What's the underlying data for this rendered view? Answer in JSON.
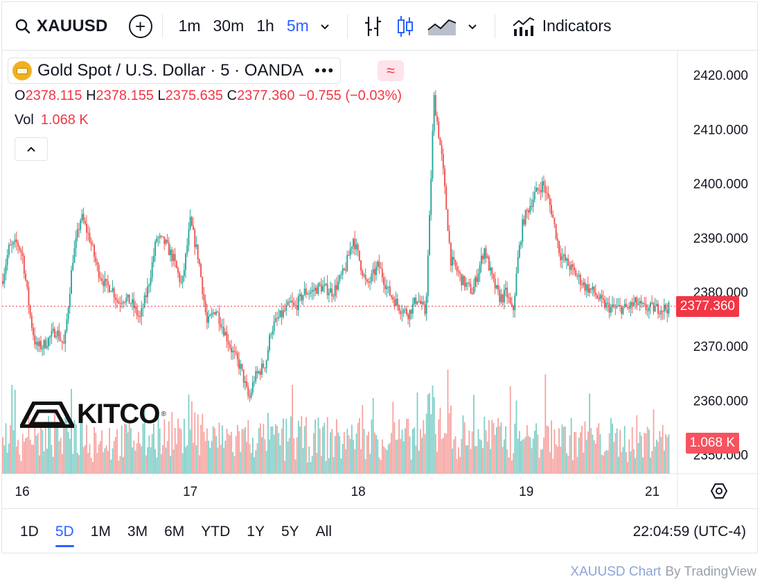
{
  "toolbar": {
    "symbol": "XAUUSD",
    "intervals": [
      "1m",
      "30m",
      "1h",
      "5m"
    ],
    "active_interval": "5m",
    "indicators_label": "Indicators"
  },
  "legend": {
    "title": "Gold Spot / U.S. Dollar · 5 · OANDA",
    "more": "•••",
    "wave": "≈",
    "open_key": "O",
    "open": "2378.115",
    "high_key": "H",
    "high": "2378.155",
    "low_key": "L",
    "low": "2375.635",
    "close_key": "C",
    "close": "2377.360",
    "change": "−0.755 (−0.03%)",
    "vol_key": "Vol",
    "vol_value": "1.068 K"
  },
  "watermark": {
    "text": "KITCO",
    "reg": "®"
  },
  "price_label": "2377.360",
  "volume_label": "1.068 K",
  "colors": {
    "up": "#26a69a",
    "down": "#ef5350",
    "up_vol": "#7fcfc7",
    "down_vol": "#f6a3a0",
    "accent": "#2962ff",
    "price_line": "#f23645"
  },
  "bottom": {
    "ranges": [
      "1D",
      "5D",
      "1M",
      "3M",
      "6M",
      "YTD",
      "1Y",
      "5Y",
      "All"
    ],
    "active_range": "5D",
    "clock": "22:04:59 (UTC-4)"
  },
  "attribution": {
    "link": "XAUUSD Chart",
    "by": "By TradingView"
  },
  "chart_data": {
    "type": "candlestick",
    "title": "Gold Spot / U.S. Dollar · 5 · OANDA",
    "y_ticks": [
      2420,
      2410,
      2400,
      2390,
      2380,
      2370,
      2360,
      2350
    ],
    "y_tick_labels": [
      "2420.000",
      "2410.000",
      "2400.000",
      "2390.000",
      "2380.000",
      "2370.000",
      "2360.000",
      "2350.000"
    ],
    "ylim": [
      2346.5,
      2424.5
    ],
    "x_tick_labels": [
      "16",
      "17",
      "18",
      "19",
      "21"
    ],
    "x_tick_days": [
      0,
      1,
      2,
      3,
      3.75
    ],
    "xlim_days": [
      -0.12,
      3.9
    ],
    "last_price": 2377.36,
    "price_path": {
      "days": [
        -0.12,
        -0.08,
        -0.03,
        0.0,
        0.05,
        0.08,
        0.12,
        0.15,
        0.2,
        0.25,
        0.3,
        0.35,
        0.4,
        0.45,
        0.5,
        0.53,
        0.57,
        0.6,
        0.65,
        0.7,
        0.75,
        0.8,
        0.85,
        0.9,
        0.95,
        1.0,
        1.05,
        1.1,
        1.15,
        1.2,
        1.25,
        1.3,
        1.35,
        1.38,
        1.45,
        1.48,
        1.52,
        1.55,
        1.6,
        1.62,
        1.68,
        1.72,
        1.77,
        1.85,
        1.92,
        1.97,
        2.05,
        2.12,
        2.18,
        2.25,
        2.3,
        2.35,
        2.4,
        2.42,
        2.45,
        2.5,
        2.55,
        2.62,
        2.68,
        2.75,
        2.8,
        2.84,
        2.86,
        2.88,
        2.9,
        2.92,
        2.95,
        2.98,
        3.05,
        3.1,
        3.15,
        3.2,
        3.25,
        3.3,
        3.35,
        3.4,
        3.45,
        3.5,
        3.55,
        3.6,
        3.65,
        3.7,
        3.75,
        3.78,
        3.82,
        3.85
      ],
      "prices": [
        2382,
        2388,
        2389,
        2387,
        2375,
        2370,
        2370,
        2371,
        2373,
        2370,
        2386,
        2394,
        2390,
        2384,
        2381,
        2381,
        2378,
        2379,
        2378,
        2375,
        2381,
        2390,
        2389,
        2386,
        2381,
        2393,
        2386,
        2374,
        2377,
        2373,
        2369,
        2366,
        2360,
        2364,
        2367,
        2373,
        2375,
        2376,
        2378,
        2377,
        2380,
        2380,
        2381,
        2380,
        2384,
        2390,
        2381,
        2385,
        2380,
        2377,
        2376,
        2379,
        2376,
        2390,
        2416,
        2404,
        2386,
        2382,
        2380,
        2388,
        2382,
        2379,
        2379,
        2380,
        2378,
        2376,
        2386,
        2393,
        2398,
        2400,
        2395,
        2387,
        2385,
        2383,
        2381,
        2380,
        2378,
        2377,
        2377,
        2377,
        2378,
        2377,
        2377,
        2377,
        2377,
        2377
      ]
    }
  }
}
